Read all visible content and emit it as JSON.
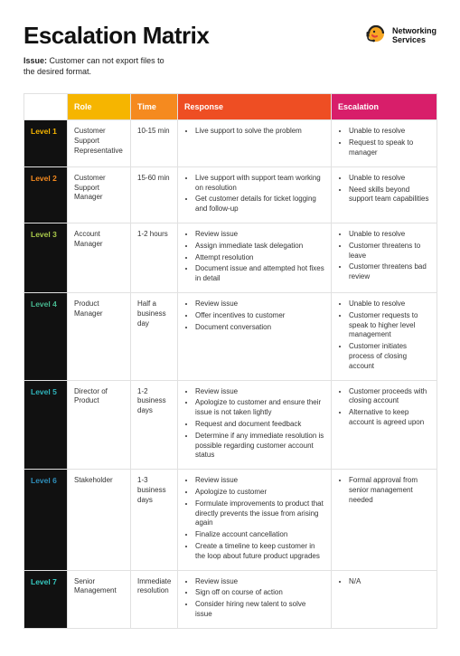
{
  "page": {
    "title": "Escalation Matrix",
    "issue_label": "Issue:",
    "issue_text": "Customer can not export files to the desired format."
  },
  "logo": {
    "line1": "Networking",
    "line2": "Services",
    "colors": {
      "head": "#f6a623",
      "headset": "#222",
      "mouth": "#e23b3b"
    }
  },
  "table": {
    "headers": {
      "role": {
        "label": "Role",
        "bg": "#f6b500"
      },
      "time": {
        "label": "Time",
        "bg": "#f58a1f"
      },
      "response": {
        "label": "Response",
        "bg": "#ee4e23"
      },
      "escalation": {
        "label": "Escalation",
        "bg": "#d81e6a"
      }
    },
    "level_colors": {
      "1": "#f6b500",
      "2": "#f58a1f",
      "3": "#a9c94a",
      "4": "#47b890",
      "5": "#2fb4bb",
      "6": "#2f8fbb",
      "7": "#36c9c0"
    },
    "rows": [
      {
        "level": "Level 1",
        "role": "Customer Support Representative",
        "time": "10-15 min",
        "response": [
          "Live support to solve the problem"
        ],
        "escalation": [
          "Unable to resolve",
          "Request to speak to manager"
        ]
      },
      {
        "level": "Level 2",
        "role": "Customer Support Manager",
        "time": "15-60 min",
        "response": [
          "Live support with support team working on resolution",
          "Get customer details for ticket logging and follow-up"
        ],
        "escalation": [
          "Unable to resolve",
          "Need skills beyond support team capabilities"
        ]
      },
      {
        "level": "Level 3",
        "role": "Account Manager",
        "time": "1-2 hours",
        "response": [
          "Review issue",
          "Assign immediate task delegation",
          "Attempt resolution",
          "Document issue and attempted hot fixes in detail"
        ],
        "escalation": [
          "Unable to resolve",
          "Customer threatens to leave",
          "Customer threatens bad review"
        ]
      },
      {
        "level": "Level 4",
        "role": "Product Manager",
        "time": "Half a business day",
        "response": [
          "Review issue",
          "Offer incentives to customer",
          "Document conversation"
        ],
        "escalation": [
          "Unable to resolve",
          "Customer requests to speak to higher level management",
          "Customer initiates process of closing account"
        ]
      },
      {
        "level": "Level 5",
        "role": "Director of Product",
        "time": "1-2 business days",
        "response": [
          "Review issue",
          "Apologize to customer and ensure their issue is not taken lightly",
          "Request and document feedback",
          "Determine if any immediate resolution is possible regarding customer account status"
        ],
        "escalation": [
          "Customer proceeds with closing account",
          "Alternative to keep account is agreed upon"
        ]
      },
      {
        "level": "Level 6",
        "role": "Stakeholder",
        "time": "1-3 business days",
        "response": [
          "Review issue",
          "Apologize to customer",
          "Formulate improvements to product that directly prevents the issue from arising again",
          "Finalize account cancellation",
          "Create a timeline to keep customer in the loop about future product upgrades"
        ],
        "escalation": [
          "Formal approval from senior management needed"
        ]
      },
      {
        "level": "Level 7",
        "role": "Senior Management",
        "time": "Immediate resolution",
        "response": [
          "Review issue",
          "Sign off on course of action",
          "Consider hiring new talent to solve issue"
        ],
        "escalation": [
          "N/A"
        ]
      }
    ]
  }
}
